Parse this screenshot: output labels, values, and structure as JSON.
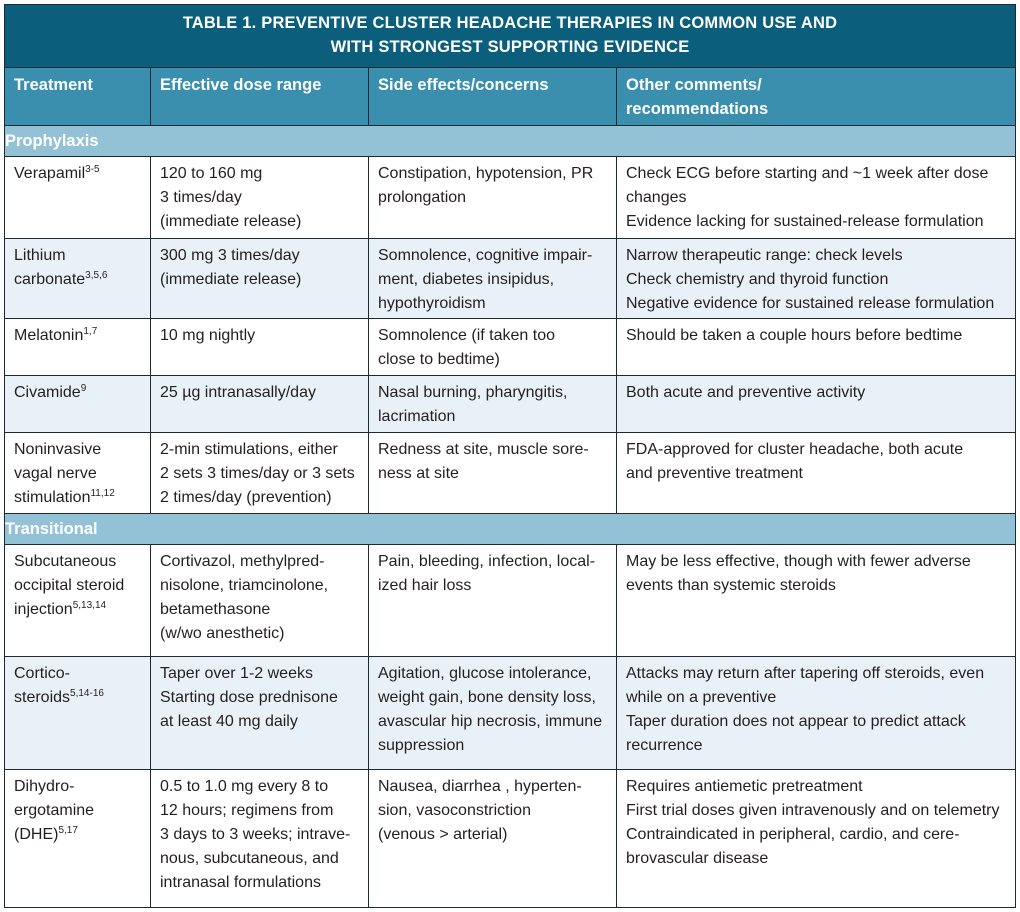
{
  "title": [
    "TABLE 1. PREVENTIVE CLUSTER HEADACHE THERAPIES IN COMMON USE AND",
    "WITH STRONGEST SUPPORTING EVIDENCE"
  ],
  "headers": [
    [
      "Treatment"
    ],
    [
      "Effective dose range"
    ],
    [
      "Side effects/concerns"
    ],
    [
      "Other comments/",
      "recommendations"
    ]
  ],
  "colors": {
    "title_bg": "#0b5f7c",
    "header_bg": "#3a8fae",
    "section_bg": "#93c1d6",
    "alt_row_bg": "#e8f1f7"
  },
  "sections": [
    {
      "label": "Prophylaxis",
      "rows": [
        {
          "treatment": [
            "Verapamil"
          ],
          "sup": "3-5",
          "dose": [
            "120 to 160 mg",
            "3 times/day",
            "(immediate release)"
          ],
          "side": [
            "Constipation, hypotension, PR",
            "prolongation"
          ],
          "comments": [
            "Check ECG before starting and ~1 week after dose",
            "changes",
            "Evidence lacking for sustained-release formulation"
          ]
        },
        {
          "treatment": [
            "Lithium",
            "carbonate"
          ],
          "sup": "3,5,6",
          "dose": [
            "300 mg 3 times/day",
            "(immediate release)"
          ],
          "side": [
            "Somnolence, cognitive impair-",
            "ment, diabetes insipidus,",
            "hypothyroidism"
          ],
          "comments": [
            "Narrow therapeutic range: check levels",
            "Check chemistry and thyroid function",
            "Negative evidence for sustained release formulation"
          ]
        },
        {
          "treatment": [
            "Melatonin"
          ],
          "sup": "1,7",
          "dose": [
            "10 mg nightly"
          ],
          "side": [
            "Somnolence (if taken too",
            "close to bedtime)"
          ],
          "comments": [
            "Should be taken a couple hours before bedtime"
          ]
        },
        {
          "treatment": [
            "Civamide"
          ],
          "sup": "9",
          "dose": [
            "25 µg intranasally/day"
          ],
          "side": [
            "Nasal burning, pharyngitis,",
            "lacrimation"
          ],
          "comments": [
            "Both acute and preventive activity"
          ]
        },
        {
          "treatment": [
            "Noninvasive",
            "vagal nerve",
            "stimulation"
          ],
          "sup": "11,12",
          "dose": [
            "2-min stimulations, either",
            "2 sets 3 times/day or 3 sets",
            "2 times/day (prevention)"
          ],
          "side": [
            "Redness at site, muscle sore-",
            "ness at site"
          ],
          "comments": [
            "FDA-approved for cluster headache, both acute",
            "and preventive treatment"
          ]
        }
      ]
    },
    {
      "label": "Transitional",
      "rows": [
        {
          "treatment": [
            "Subcutaneous",
            "occipital steroid",
            "injection"
          ],
          "sup": "5,13,14",
          "dose": [
            "Cortivazol, methylpred-",
            "nisolone, triamcinolone,",
            "betamethasone",
            "(w/wo anesthetic)"
          ],
          "side": [
            "Pain, bleeding, infection, local-",
            "ized hair loss"
          ],
          "comments": [
            "May be less effective, though with fewer adverse",
            "events than systemic steroids"
          ]
        },
        {
          "treatment": [
            "Cortico-",
            "steroids"
          ],
          "sup": "5,14-16",
          "dose": [
            "Taper over 1-2 weeks",
            "Starting dose prednisone",
            "at least 40 mg daily"
          ],
          "side": [
            "Agitation, glucose intolerance,",
            "weight gain, bone density loss,",
            "avascular hip necrosis, immune",
            "suppression"
          ],
          "comments": [
            "Attacks may return after tapering off steroids, even",
            "while on a preventive",
            "Taper duration does not appear to predict attack",
            "recurrence"
          ]
        },
        {
          "treatment": [
            "Dihydro-",
            "ergotamine",
            "(DHE)"
          ],
          "sup": "5,17",
          "dose": [
            "0.5 to 1.0 mg every 8 to",
            "12 hours; regimens from",
            "3 days to 3 weeks; intrave-",
            "nous, subcutaneous, and",
            "intranasal formulations"
          ],
          "side": [
            "Nausea, diarrhea , hyperten-",
            "sion, vasoconstriction",
            "(venous > arterial)"
          ],
          "comments": [
            "Requires antiemetic pretreatment",
            "First trial doses given intravenously and on telemetry",
            "Contraindicated in peripheral, cardio, and cere-",
            "brovascular disease"
          ]
        }
      ]
    }
  ]
}
